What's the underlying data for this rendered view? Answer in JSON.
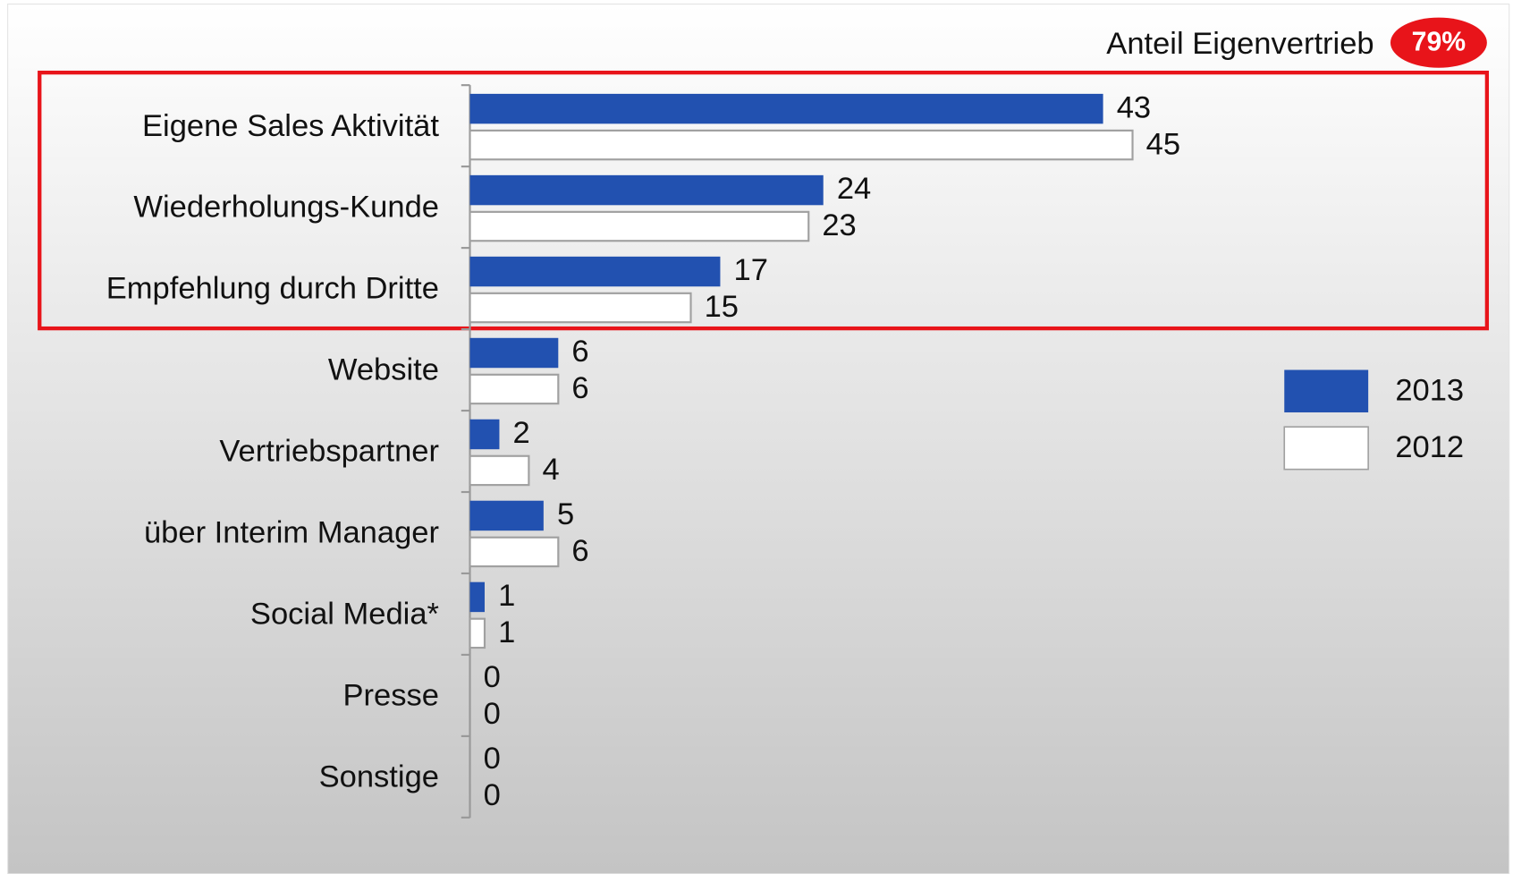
{
  "chart_data": {
    "type": "hbar",
    "annotation": {
      "text": "Anteil Eigenvertrieb",
      "badge": "79%"
    },
    "categories": [
      "Eigene Sales Aktivität",
      "Wiederholungs-Kunde",
      "Empfehlung durch Dritte",
      "Website",
      "Vertriebspartner",
      "über Interim Manager",
      "Social Media*",
      "Presse",
      "Sonstige"
    ],
    "series": [
      {
        "name": "2013",
        "color": "#2251b0",
        "values": [
          43,
          24,
          17,
          6,
          2,
          5,
          1,
          0,
          0
        ]
      },
      {
        "name": "2012",
        "color": "#ffffff",
        "values": [
          45,
          23,
          15,
          6,
          4,
          6,
          1,
          0,
          0
        ]
      }
    ],
    "legend": "right"
  }
}
